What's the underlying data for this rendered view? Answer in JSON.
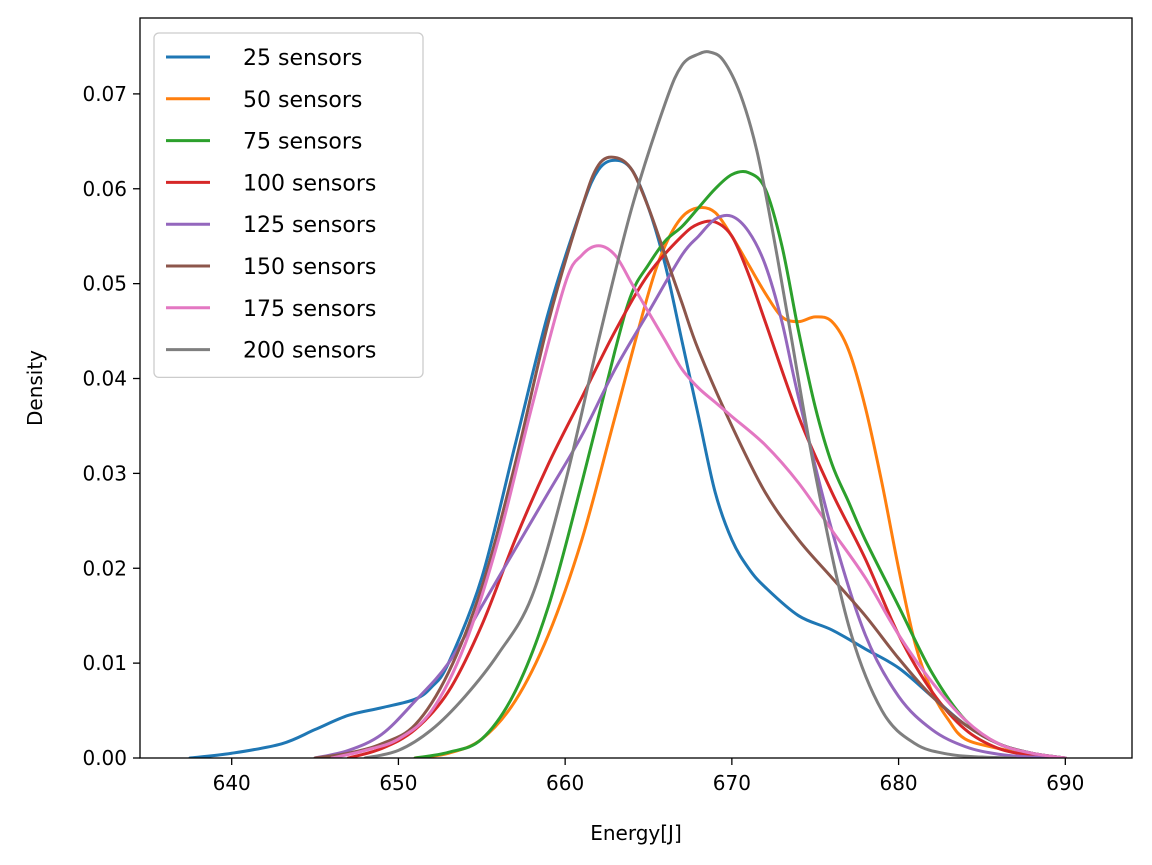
{
  "chart_data": {
    "type": "line",
    "title": "",
    "xlabel": "Energy[J]",
    "ylabel": "Density",
    "xlim": [
      634.5,
      694
    ],
    "ylim": [
      0,
      0.078
    ],
    "x_ticks": [
      640,
      650,
      660,
      670,
      680,
      690
    ],
    "y_ticks": [
      0.0,
      0.01,
      0.02,
      0.03,
      0.04,
      0.05,
      0.06,
      0.07
    ],
    "grid": false,
    "legend": "top-left",
    "series": [
      {
        "name": "25 sensors",
        "color": "#1f77b4",
        "x": [
          637.5,
          640,
          643,
          645,
          647,
          649,
          651,
          652,
          653,
          655,
          657,
          659,
          661,
          662,
          663,
          664,
          665,
          666,
          667,
          668,
          669,
          670,
          671,
          672,
          674,
          676,
          678,
          680,
          682,
          684,
          686,
          688,
          690
        ],
        "y": [
          0.0,
          0.0005,
          0.0015,
          0.003,
          0.0045,
          0.0053,
          0.0062,
          0.0075,
          0.01,
          0.019,
          0.033,
          0.047,
          0.058,
          0.062,
          0.063,
          0.062,
          0.058,
          0.052,
          0.044,
          0.036,
          0.028,
          0.023,
          0.02,
          0.018,
          0.015,
          0.0135,
          0.0115,
          0.0095,
          0.0065,
          0.0035,
          0.0015,
          0.0005,
          0.0
        ]
      },
      {
        "name": "50 sensors",
        "color": "#ff7f0e",
        "x": [
          651,
          653,
          655,
          657,
          659,
          661,
          663,
          665,
          666,
          667,
          668,
          669,
          670,
          671,
          672,
          673,
          674,
          675,
          676,
          677,
          678,
          679,
          680,
          681,
          682,
          683,
          684,
          686,
          688,
          690
        ],
        "y": [
          0.0,
          0.0005,
          0.002,
          0.006,
          0.013,
          0.023,
          0.036,
          0.049,
          0.054,
          0.057,
          0.058,
          0.0575,
          0.055,
          0.052,
          0.049,
          0.0465,
          0.046,
          0.0465,
          0.046,
          0.043,
          0.037,
          0.029,
          0.02,
          0.012,
          0.007,
          0.004,
          0.002,
          0.001,
          0.0003,
          0.0
        ]
      },
      {
        "name": "75 sensors",
        "color": "#2ca02c",
        "x": [
          651,
          653,
          655,
          657,
          659,
          661,
          663,
          664,
          665,
          666,
          667,
          668,
          669,
          670,
          671,
          672,
          673,
          674,
          675,
          676,
          677,
          678,
          680,
          682,
          684,
          686,
          688,
          690
        ],
        "y": [
          0.0,
          0.0006,
          0.002,
          0.007,
          0.016,
          0.029,
          0.043,
          0.049,
          0.052,
          0.0545,
          0.056,
          0.058,
          0.06,
          0.0615,
          0.0617,
          0.06,
          0.054,
          0.045,
          0.037,
          0.031,
          0.027,
          0.023,
          0.016,
          0.009,
          0.004,
          0.0015,
          0.0005,
          0.0
        ]
      },
      {
        "name": "100 sensors",
        "color": "#d62728",
        "x": [
          647,
          649,
          651,
          653,
          655,
          657,
          659,
          661,
          663,
          665,
          667,
          668,
          669,
          670,
          671,
          672,
          674,
          676,
          678,
          680,
          682,
          684,
          686,
          688,
          690
        ],
        "y": [
          0.0,
          0.001,
          0.003,
          0.007,
          0.014,
          0.023,
          0.031,
          0.038,
          0.045,
          0.051,
          0.055,
          0.0563,
          0.0565,
          0.055,
          0.051,
          0.046,
          0.036,
          0.028,
          0.021,
          0.013,
          0.007,
          0.003,
          0.001,
          0.0003,
          0.0
        ]
      },
      {
        "name": "125 sensors",
        "color": "#9467bd",
        "x": [
          645,
          647,
          649,
          651,
          653,
          655,
          657,
          659,
          661,
          663,
          665,
          667,
          668,
          669,
          670,
          671,
          672,
          673,
          674,
          676,
          678,
          680,
          682,
          684,
          686,
          688,
          690
        ],
        "y": [
          0.0,
          0.0008,
          0.0025,
          0.006,
          0.01,
          0.016,
          0.022,
          0.028,
          0.034,
          0.041,
          0.047,
          0.053,
          0.055,
          0.0568,
          0.0571,
          0.0555,
          0.052,
          0.046,
          0.038,
          0.024,
          0.013,
          0.0065,
          0.003,
          0.0012,
          0.0004,
          0.0001,
          0.0
        ]
      },
      {
        "name": "150 sensors",
        "color": "#8c564b",
        "x": [
          645,
          647,
          649,
          651,
          653,
          655,
          657,
          659,
          661,
          662,
          663,
          664,
          665,
          666,
          667,
          668,
          670,
          672,
          674,
          676,
          678,
          680,
          682,
          684,
          686,
          688,
          690
        ],
        "y": [
          0.0,
          0.0005,
          0.0015,
          0.0035,
          0.009,
          0.018,
          0.031,
          0.046,
          0.058,
          0.0625,
          0.0633,
          0.062,
          0.058,
          0.053,
          0.048,
          0.043,
          0.035,
          0.028,
          0.023,
          0.019,
          0.015,
          0.0105,
          0.0065,
          0.0035,
          0.0015,
          0.0005,
          0.0
        ]
      },
      {
        "name": "175 sensors",
        "color": "#e377c2",
        "x": [
          646,
          648,
          650,
          652,
          654,
          656,
          658,
          660,
          661,
          662,
          663,
          664,
          665,
          666,
          667,
          668,
          669,
          670,
          672,
          674,
          676,
          678,
          680,
          682,
          684,
          686,
          688,
          690
        ],
        "y": [
          0.0,
          0.0008,
          0.002,
          0.005,
          0.012,
          0.023,
          0.037,
          0.05,
          0.053,
          0.054,
          0.053,
          0.05,
          0.047,
          0.044,
          0.041,
          0.039,
          0.0375,
          0.036,
          0.033,
          0.029,
          0.024,
          0.019,
          0.013,
          0.008,
          0.004,
          0.0015,
          0.0005,
          0.0
        ]
      },
      {
        "name": "200 sensors",
        "color": "#7f7f7f",
        "x": [
          648,
          650,
          652,
          654,
          656,
          658,
          660,
          662,
          664,
          666,
          667,
          668,
          668.7,
          669.5,
          670.5,
          671.5,
          672.5,
          673.5,
          675,
          677,
          679,
          681,
          683,
          685,
          687
        ],
        "y": [
          0.0,
          0.0008,
          0.003,
          0.0065,
          0.011,
          0.017,
          0.029,
          0.044,
          0.058,
          0.069,
          0.073,
          0.0742,
          0.0744,
          0.0735,
          0.07,
          0.064,
          0.055,
          0.045,
          0.03,
          0.014,
          0.005,
          0.0015,
          0.0004,
          0.0001,
          0.0
        ]
      }
    ]
  }
}
